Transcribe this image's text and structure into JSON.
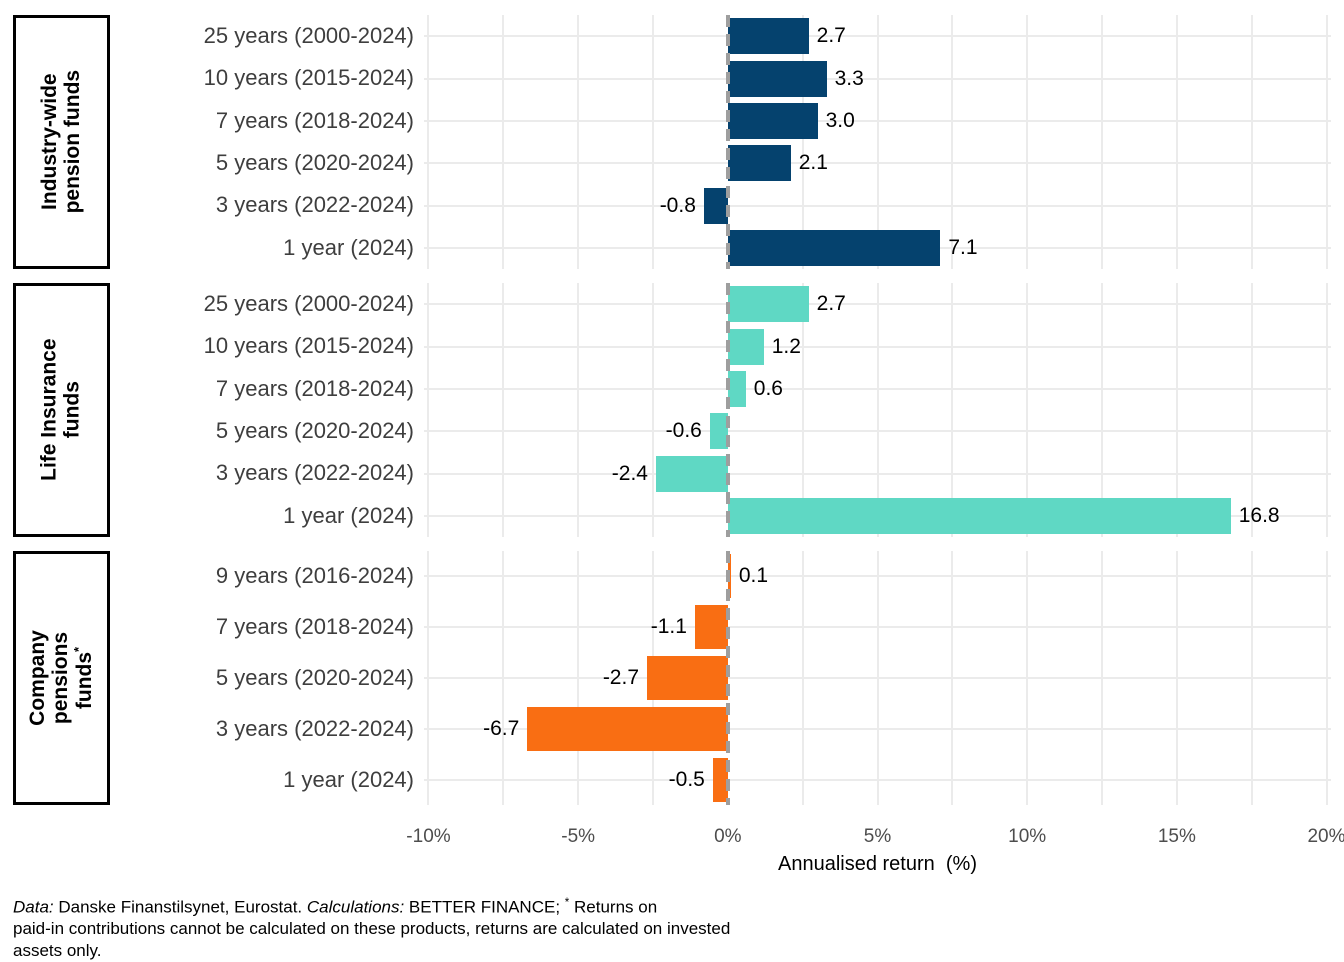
{
  "chart_data": {
    "type": "bar",
    "orientation": "horizontal",
    "xlabel": "Annualised return  (%)",
    "xlim": [
      -10.15,
      20.15
    ],
    "grid": true,
    "grid_color": "#EBEBEB",
    "zero_line": {
      "value": 0,
      "style": "dashed",
      "color": "#9E9E9E"
    },
    "x_gridlines": [
      -10,
      -7.5,
      -5,
      -2.5,
      2.5,
      5,
      7.5,
      10,
      12.5,
      15,
      17.5,
      20
    ],
    "x_major_ticks": [
      {
        "value": -10,
        "label": "-10%"
      },
      {
        "value": -5,
        "label": "-5%"
      },
      {
        "value": 0,
        "label": "0%"
      },
      {
        "value": 5,
        "label": "5%"
      },
      {
        "value": 10,
        "label": "10%"
      },
      {
        "value": 15,
        "label": "15%"
      },
      {
        "value": 20,
        "label": "20%"
      }
    ],
    "groups": [
      {
        "name": "Industry-wide pension funds",
        "label_lines": [
          "Industry-wide",
          "pension funds"
        ],
        "label_superscript": "",
        "color": "#05426E",
        "bars": [
          {
            "category": "25 years (2000-2024)",
            "value": 2.7,
            "label": "2.7"
          },
          {
            "category": "10 years (2015-2024)",
            "value": 3.3,
            "label": "3.3"
          },
          {
            "category": "7 years (2018-2024)",
            "value": 3.0,
            "label": "3.0"
          },
          {
            "category": "5 years (2020-2024)",
            "value": 2.1,
            "label": "2.1"
          },
          {
            "category": "3 years (2022-2024)",
            "value": -0.8,
            "label": "-0.8"
          },
          {
            "category": "1 year (2024)",
            "value": 7.1,
            "label": "7.1"
          }
        ]
      },
      {
        "name": "Life Insurance funds",
        "label_lines": [
          "Life Insurance",
          "funds"
        ],
        "label_superscript": "",
        "color": "#5FD8C4",
        "bars": [
          {
            "category": "25 years (2000-2024)",
            "value": 2.7,
            "label": "2.7"
          },
          {
            "category": "10 years (2015-2024)",
            "value": 1.2,
            "label": "1.2"
          },
          {
            "category": "7 years (2018-2024)",
            "value": 0.6,
            "label": "0.6"
          },
          {
            "category": "5 years (2020-2024)",
            "value": -0.6,
            "label": "-0.6"
          },
          {
            "category": "3 years (2022-2024)",
            "value": -2.4,
            "label": "-2.4"
          },
          {
            "category": "1 year (2024)",
            "value": 16.8,
            "label": "16.8"
          }
        ]
      },
      {
        "name": "Company pensions funds*",
        "label_lines": [
          "Company",
          "pensions",
          "funds"
        ],
        "label_superscript": "*",
        "color": "#F96E13",
        "bars": [
          {
            "category": "9 years (2016-2024)",
            "value": 0.1,
            "label": "0.1"
          },
          {
            "category": "7 years (2018-2024)",
            "value": -1.1,
            "label": "-1.1"
          },
          {
            "category": "5 years (2020-2024)",
            "value": -2.7,
            "label": "-2.7"
          },
          {
            "category": "3 years (2022-2024)",
            "value": -6.7,
            "label": "-6.7"
          },
          {
            "category": "1 year (2024)",
            "value": -0.5,
            "label": "-0.5"
          }
        ]
      }
    ],
    "footnote": {
      "data_label_italic": "Data:",
      "data_text": " Danske Finanstilsynet, Eurostat. ",
      "calc_label_italic": "Calculations:",
      "calc_text": " BETTER FINANCE; ",
      "asterisk": "*",
      "line1_rest": " Returns on",
      "line2": "paid-in contributions cannot be calculated on these products, returns are calculated on invested",
      "line3": "assets only."
    }
  }
}
